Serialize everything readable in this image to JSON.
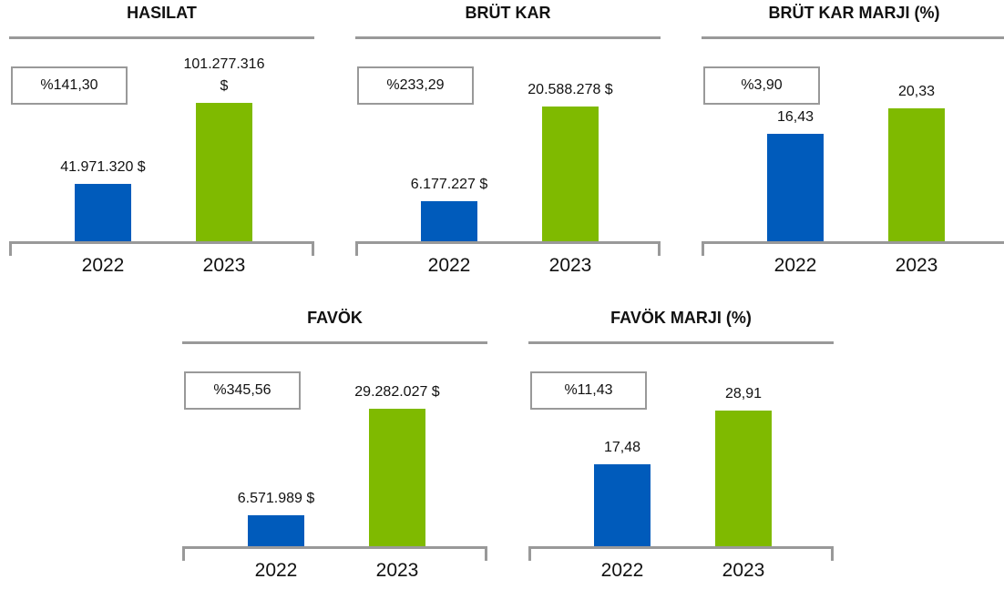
{
  "chart_data": [
    {
      "type": "bar",
      "title": "HASILAT",
      "annotation": "%141,30",
      "categories": [
        "2022",
        "2023"
      ],
      "values": [
        41971320,
        101277316
      ],
      "value_labels": [
        "41.971.320 $",
        "101.277.316 $"
      ],
      "colors": [
        "#005bbb",
        "#7fba00"
      ],
      "ylim": [
        0,
        120000000
      ]
    },
    {
      "type": "bar",
      "title": "BRÜT KAR",
      "annotation": "%233,29",
      "categories": [
        "2022",
        "2023"
      ],
      "values": [
        6177227,
        20588278
      ],
      "value_labels": [
        "6.177.227 $",
        "20.588.278 $"
      ],
      "colors": [
        "#005bbb",
        "#7fba00"
      ],
      "ylim": [
        0,
        25000000
      ]
    },
    {
      "type": "bar",
      "title": "BRÜT KAR MARJI (%)",
      "annotation": "%3,90",
      "categories": [
        "2022",
        "2023"
      ],
      "values": [
        16.43,
        20.33
      ],
      "value_labels": [
        "16,43",
        "20,33"
      ],
      "colors": [
        "#005bbb",
        "#7fba00"
      ],
      "ylim": [
        0,
        25
      ]
    },
    {
      "type": "bar",
      "title": "FAVÖK",
      "annotation": "%345,56",
      "categories": [
        "2022",
        "2023"
      ],
      "values": [
        6571989,
        29282027
      ],
      "value_labels": [
        "6.571.989 $",
        "29.282.027 $"
      ],
      "colors": [
        "#005bbb",
        "#7fba00"
      ],
      "ylim": [
        0,
        35000000
      ]
    },
    {
      "type": "bar",
      "title": "FAVÖK MARJI (%)",
      "annotation": "%11,43",
      "categories": [
        "2022",
        "2023"
      ],
      "values": [
        17.48,
        28.91
      ],
      "value_labels": [
        "17,48",
        "28,91"
      ],
      "colors": [
        "#005bbb",
        "#7fba00"
      ],
      "ylim": [
        0,
        35
      ]
    }
  ]
}
